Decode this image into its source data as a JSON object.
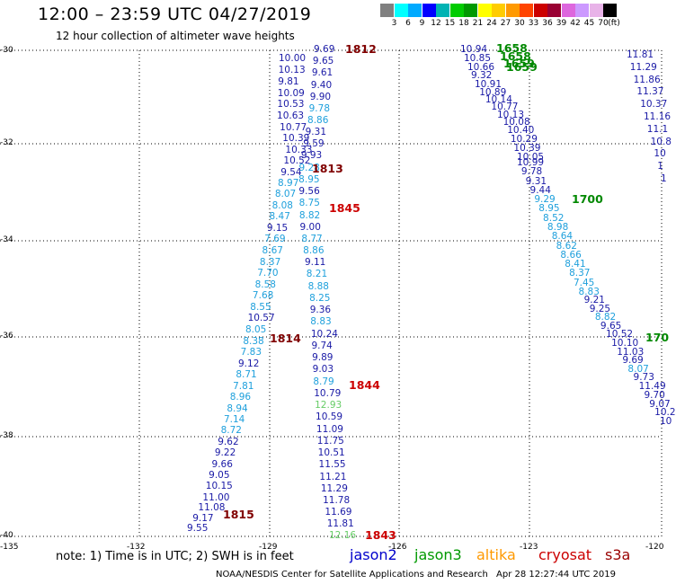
{
  "header": {
    "title": "12:00 – 23:59 UTC 04/27/2019",
    "subtitle": "12 hour collection of altimeter wave heights"
  },
  "scale": {
    "unit": "(ft)",
    "colors": [
      "#808080",
      "#00ffff",
      "#00aaff",
      "#0000ff",
      "#00b3b3",
      "#00cc00",
      "#009900",
      "#ffff00",
      "#ffcc00",
      "#ff9900",
      "#ff4400",
      "#cc0000",
      "#990033",
      "#dd66dd",
      "#cc99ff",
      "#e8b3e8",
      "#000000"
    ],
    "labels": [
      "3",
      "6",
      "9",
      "12",
      "15",
      "18",
      "21",
      "24",
      "27",
      "30",
      "33",
      "36",
      "39",
      "42",
      "45",
      "70"
    ]
  },
  "axes": {
    "y_labels": [
      "-30",
      "-32",
      "-34",
      "-36",
      "-38",
      "-40"
    ],
    "x_labels": [
      "-135",
      "-132",
      "-129",
      "-126",
      "-123",
      "-120"
    ]
  },
  "tracks": [
    {
      "name": "track-a",
      "points": [
        {
          "v": "10.00",
          "c": "#1a1aa6"
        },
        {
          "v": "10.13",
          "c": "#1a1aa6"
        },
        {
          "v": "9.81",
          "c": "#1a1aa6"
        },
        {
          "v": "10.09",
          "c": "#1a1aa6"
        },
        {
          "v": "10.53",
          "c": "#1a1aa6"
        },
        {
          "v": "10.63",
          "c": "#1a1aa6"
        },
        {
          "v": "10.77",
          "c": "#1a1aa6"
        },
        {
          "v": "10.39",
          "c": "#1a1aa6"
        },
        {
          "v": "10.33",
          "c": "#1a1aa6"
        },
        {
          "v": "10.52",
          "c": "#1a1aa6"
        },
        {
          "v": "9.54",
          "c": "#1a1aa6"
        },
        {
          "v": "8.97",
          "c": "#1fa0dc"
        },
        {
          "v": "8.07",
          "c": "#1fa0dc"
        },
        {
          "v": "8.08",
          "c": "#1fa0dc"
        },
        {
          "v": "8.47",
          "c": "#1fa0dc"
        },
        {
          "v": "9.15",
          "c": "#1a1aa6"
        },
        {
          "v": "7.69",
          "c": "#1fa0dc"
        },
        {
          "v": "8.67",
          "c": "#1fa0dc"
        },
        {
          "v": "8.37",
          "c": "#1fa0dc"
        },
        {
          "v": "7.70",
          "c": "#1fa0dc"
        },
        {
          "v": "8.58",
          "c": "#1fa0dc"
        },
        {
          "v": "7.68",
          "c": "#1fa0dc"
        },
        {
          "v": "8.55",
          "c": "#1fa0dc"
        },
        {
          "v": "10.57",
          "c": "#1a1aa6"
        },
        {
          "v": "8.05",
          "c": "#1fa0dc"
        },
        {
          "v": "8.38",
          "c": "#1fa0dc"
        },
        {
          "v": "7.83",
          "c": "#1fa0dc"
        },
        {
          "v": "9.12",
          "c": "#1a1aa6"
        },
        {
          "v": "8.71",
          "c": "#1fa0dc"
        },
        {
          "v": "7.81",
          "c": "#1fa0dc"
        },
        {
          "v": "8.96",
          "c": "#1fa0dc"
        },
        {
          "v": "8.94",
          "c": "#1fa0dc"
        },
        {
          "v": "7.14",
          "c": "#1fa0dc"
        },
        {
          "v": "8.72",
          "c": "#1fa0dc"
        },
        {
          "v": "9.62",
          "c": "#1a1aa6"
        },
        {
          "v": "9.22",
          "c": "#1a1aa6"
        },
        {
          "v": "9.66",
          "c": "#1a1aa6"
        },
        {
          "v": "9.05",
          "c": "#1a1aa6"
        },
        {
          "v": "10.15",
          "c": "#1a1aa6"
        },
        {
          "v": "11.00",
          "c": "#1a1aa6"
        },
        {
          "v": "11.08",
          "c": "#1a1aa6"
        },
        {
          "v": "9.17",
          "c": "#1a1aa6"
        },
        {
          "v": "9.55",
          "c": "#1a1aa6"
        }
      ]
    },
    {
      "name": "track-b",
      "points": [
        {
          "v": "9.69",
          "c": "#1a1aa6"
        },
        {
          "v": "9.65",
          "c": "#1a1aa6"
        },
        {
          "v": "9.61",
          "c": "#1a1aa6"
        },
        {
          "v": "9.40",
          "c": "#1a1aa6"
        },
        {
          "v": "9.90",
          "c": "#1a1aa6"
        },
        {
          "v": "9.78",
          "c": "#1fa0dc"
        },
        {
          "v": "8.86",
          "c": "#1fa0dc"
        },
        {
          "v": "9.31",
          "c": "#1a1aa6"
        },
        {
          "v": "9.59",
          "c": "#1a1aa6"
        },
        {
          "v": "9.93",
          "c": "#1a1aa6"
        },
        {
          "v": "9.28",
          "c": "#1fa0dc"
        },
        {
          "v": "8.95",
          "c": "#1fa0dc"
        },
        {
          "v": "9.56",
          "c": "#1a1aa6"
        },
        {
          "v": "8.75",
          "c": "#1fa0dc"
        },
        {
          "v": "8.82",
          "c": "#1fa0dc"
        },
        {
          "v": "9.00",
          "c": "#1a1aa6"
        },
        {
          "v": "8.77",
          "c": "#1fa0dc"
        },
        {
          "v": "8.86",
          "c": "#1fa0dc"
        },
        {
          "v": "9.11",
          "c": "#1a1aa6"
        },
        {
          "v": "8.21",
          "c": "#1fa0dc"
        },
        {
          "v": "8.88",
          "c": "#1fa0dc"
        },
        {
          "v": "8.25",
          "c": "#1fa0dc"
        },
        {
          "v": "9.36",
          "c": "#1a1aa6"
        },
        {
          "v": "8.83",
          "c": "#1fa0dc"
        },
        {
          "v": "10.24",
          "c": "#1a1aa6"
        },
        {
          "v": "9.74",
          "c": "#1a1aa6"
        },
        {
          "v": "9.89",
          "c": "#1a1aa6"
        },
        {
          "v": "9.03",
          "c": "#1a1aa6"
        },
        {
          "v": "8.79",
          "c": "#1fa0dc"
        },
        {
          "v": "10.79",
          "c": "#1a1aa6"
        },
        {
          "v": "12.93",
          "c": "#66cc66"
        },
        {
          "v": "10.59",
          "c": "#1a1aa6"
        },
        {
          "v": "11.09",
          "c": "#1a1aa6"
        },
        {
          "v": "11.75",
          "c": "#1a1aa6"
        },
        {
          "v": "10.51",
          "c": "#1a1aa6"
        },
        {
          "v": "11.55",
          "c": "#1a1aa6"
        },
        {
          "v": "11.21",
          "c": "#1a1aa6"
        },
        {
          "v": "11.29",
          "c": "#1a1aa6"
        },
        {
          "v": "11.78",
          "c": "#1a1aa6"
        },
        {
          "v": "11.69",
          "c": "#1a1aa6"
        },
        {
          "v": "11.81",
          "c": "#1a1aa6"
        },
        {
          "v": "12.16",
          "c": "#66cc66"
        }
      ]
    },
    {
      "name": "track-c",
      "points": [
        {
          "v": "10.94",
          "c": "#1a1aa6"
        },
        {
          "v": "10.85",
          "c": "#1a1aa6"
        },
        {
          "v": "10.66",
          "c": "#1a1aa6"
        },
        {
          "v": "9.32",
          "c": "#1a1aa6"
        },
        {
          "v": "10.91",
          "c": "#1a1aa6"
        },
        {
          "v": "10.89",
          "c": "#1a1aa6"
        },
        {
          "v": "10.14",
          "c": "#1a1aa6"
        },
        {
          "v": "10.77",
          "c": "#1a1aa6"
        },
        {
          "v": "10.13",
          "c": "#1a1aa6"
        },
        {
          "v": "10.08",
          "c": "#1a1aa6"
        },
        {
          "v": "10.40",
          "c": "#1a1aa6"
        },
        {
          "v": "10.29",
          "c": "#1a1aa6"
        },
        {
          "v": "10.39",
          "c": "#1a1aa6"
        },
        {
          "v": "10.05",
          "c": "#1a1aa6"
        }
      ]
    },
    {
      "name": "track-d",
      "points": [
        {
          "v": "10.99",
          "c": "#1a1aa6"
        },
        {
          "v": "9.78",
          "c": "#1a1aa6"
        },
        {
          "v": "9.31",
          "c": "#1a1aa6"
        },
        {
          "v": "9.44",
          "c": "#1a1aa6"
        },
        {
          "v": "9.29",
          "c": "#1fa0dc"
        },
        {
          "v": "8.95",
          "c": "#1fa0dc"
        },
        {
          "v": "8.52",
          "c": "#1fa0dc"
        },
        {
          "v": "8.98",
          "c": "#1fa0dc"
        },
        {
          "v": "8.64",
          "c": "#1fa0dc"
        },
        {
          "v": "8.62",
          "c": "#1fa0dc"
        },
        {
          "v": "8.66",
          "c": "#1fa0dc"
        },
        {
          "v": "8.41",
          "c": "#1fa0dc"
        },
        {
          "v": "8.37",
          "c": "#1fa0dc"
        },
        {
          "v": "7.45",
          "c": "#1fa0dc"
        },
        {
          "v": "8.83",
          "c": "#1fa0dc"
        },
        {
          "v": "9.21",
          "c": "#1a1aa6"
        },
        {
          "v": "9.25",
          "c": "#1a1aa6"
        },
        {
          "v": "8.82",
          "c": "#1fa0dc"
        },
        {
          "v": "9.65",
          "c": "#1a1aa6"
        },
        {
          "v": "10.52",
          "c": "#1a1aa6"
        },
        {
          "v": "10.10",
          "c": "#1a1aa6"
        },
        {
          "v": "11.03",
          "c": "#1a1aa6"
        },
        {
          "v": "9.69",
          "c": "#1a1aa6"
        },
        {
          "v": "8.07",
          "c": "#1fa0dc"
        },
        {
          "v": "9.73",
          "c": "#1a1aa6"
        },
        {
          "v": "11.49",
          "c": "#1a1aa6"
        },
        {
          "v": "9.70",
          "c": "#1a1aa6"
        },
        {
          "v": "9.07",
          "c": "#1a1aa6"
        },
        {
          "v": "10.2",
          "c": "#1a1aa6"
        },
        {
          "v": "10",
          "c": "#1a1aa6"
        }
      ]
    },
    {
      "name": "track-e",
      "points": [
        {
          "v": "11.81",
          "c": "#1a1aa6"
        },
        {
          "v": "11.29",
          "c": "#1a1aa6"
        },
        {
          "v": "11.86",
          "c": "#1a1aa6"
        },
        {
          "v": "11.37",
          "c": "#1a1aa6"
        },
        {
          "v": "10.37",
          "c": "#1a1aa6"
        },
        {
          "v": "11.16",
          "c": "#1a1aa6"
        },
        {
          "v": "11.1",
          "c": "#1a1aa6"
        },
        {
          "v": "10.8",
          "c": "#1a1aa6"
        },
        {
          "v": "10",
          "c": "#1a1aa6"
        },
        {
          "v": "1",
          "c": "#1a1aa6"
        },
        {
          "v": "1",
          "c": "#1a1aa6"
        }
      ]
    }
  ],
  "time_labels": [
    {
      "t": "1812",
      "c": "#800000"
    },
    {
      "t": "1813",
      "c": "#800000"
    },
    {
      "t": "1845",
      "c": "#cc0000"
    },
    {
      "t": "1814",
      "c": "#800000"
    },
    {
      "t": "1844",
      "c": "#cc0000"
    },
    {
      "t": "1815",
      "c": "#800000"
    },
    {
      "t": "1843",
      "c": "#cc0000"
    },
    {
      "t": "1658",
      "c": "#008800"
    },
    {
      "t": "1658",
      "c": "#008800"
    },
    {
      "t": "1659",
      "c": "#008800"
    },
    {
      "t": "1659",
      "c": "#008800"
    },
    {
      "t": "1700",
      "c": "#008800"
    },
    {
      "t": "170",
      "c": "#008800"
    }
  ],
  "footer": {
    "note": "note:  1) Time is in UTC;  2) SWH is in feet",
    "legend": [
      {
        "label": "jason2",
        "c": "#0000cc"
      },
      {
        "label": "jason3",
        "c": "#009900"
      },
      {
        "label": "altika",
        "c": "#ff9900"
      },
      {
        "label": "cryosat",
        "c": "#cc0000"
      },
      {
        "label": "s3a",
        "c": "#990000"
      }
    ],
    "credit": "NOAA/NESDIS Center for Satellite Applications and Research",
    "timestamp": "Apr 28 12:27:44 UTC 2019"
  }
}
